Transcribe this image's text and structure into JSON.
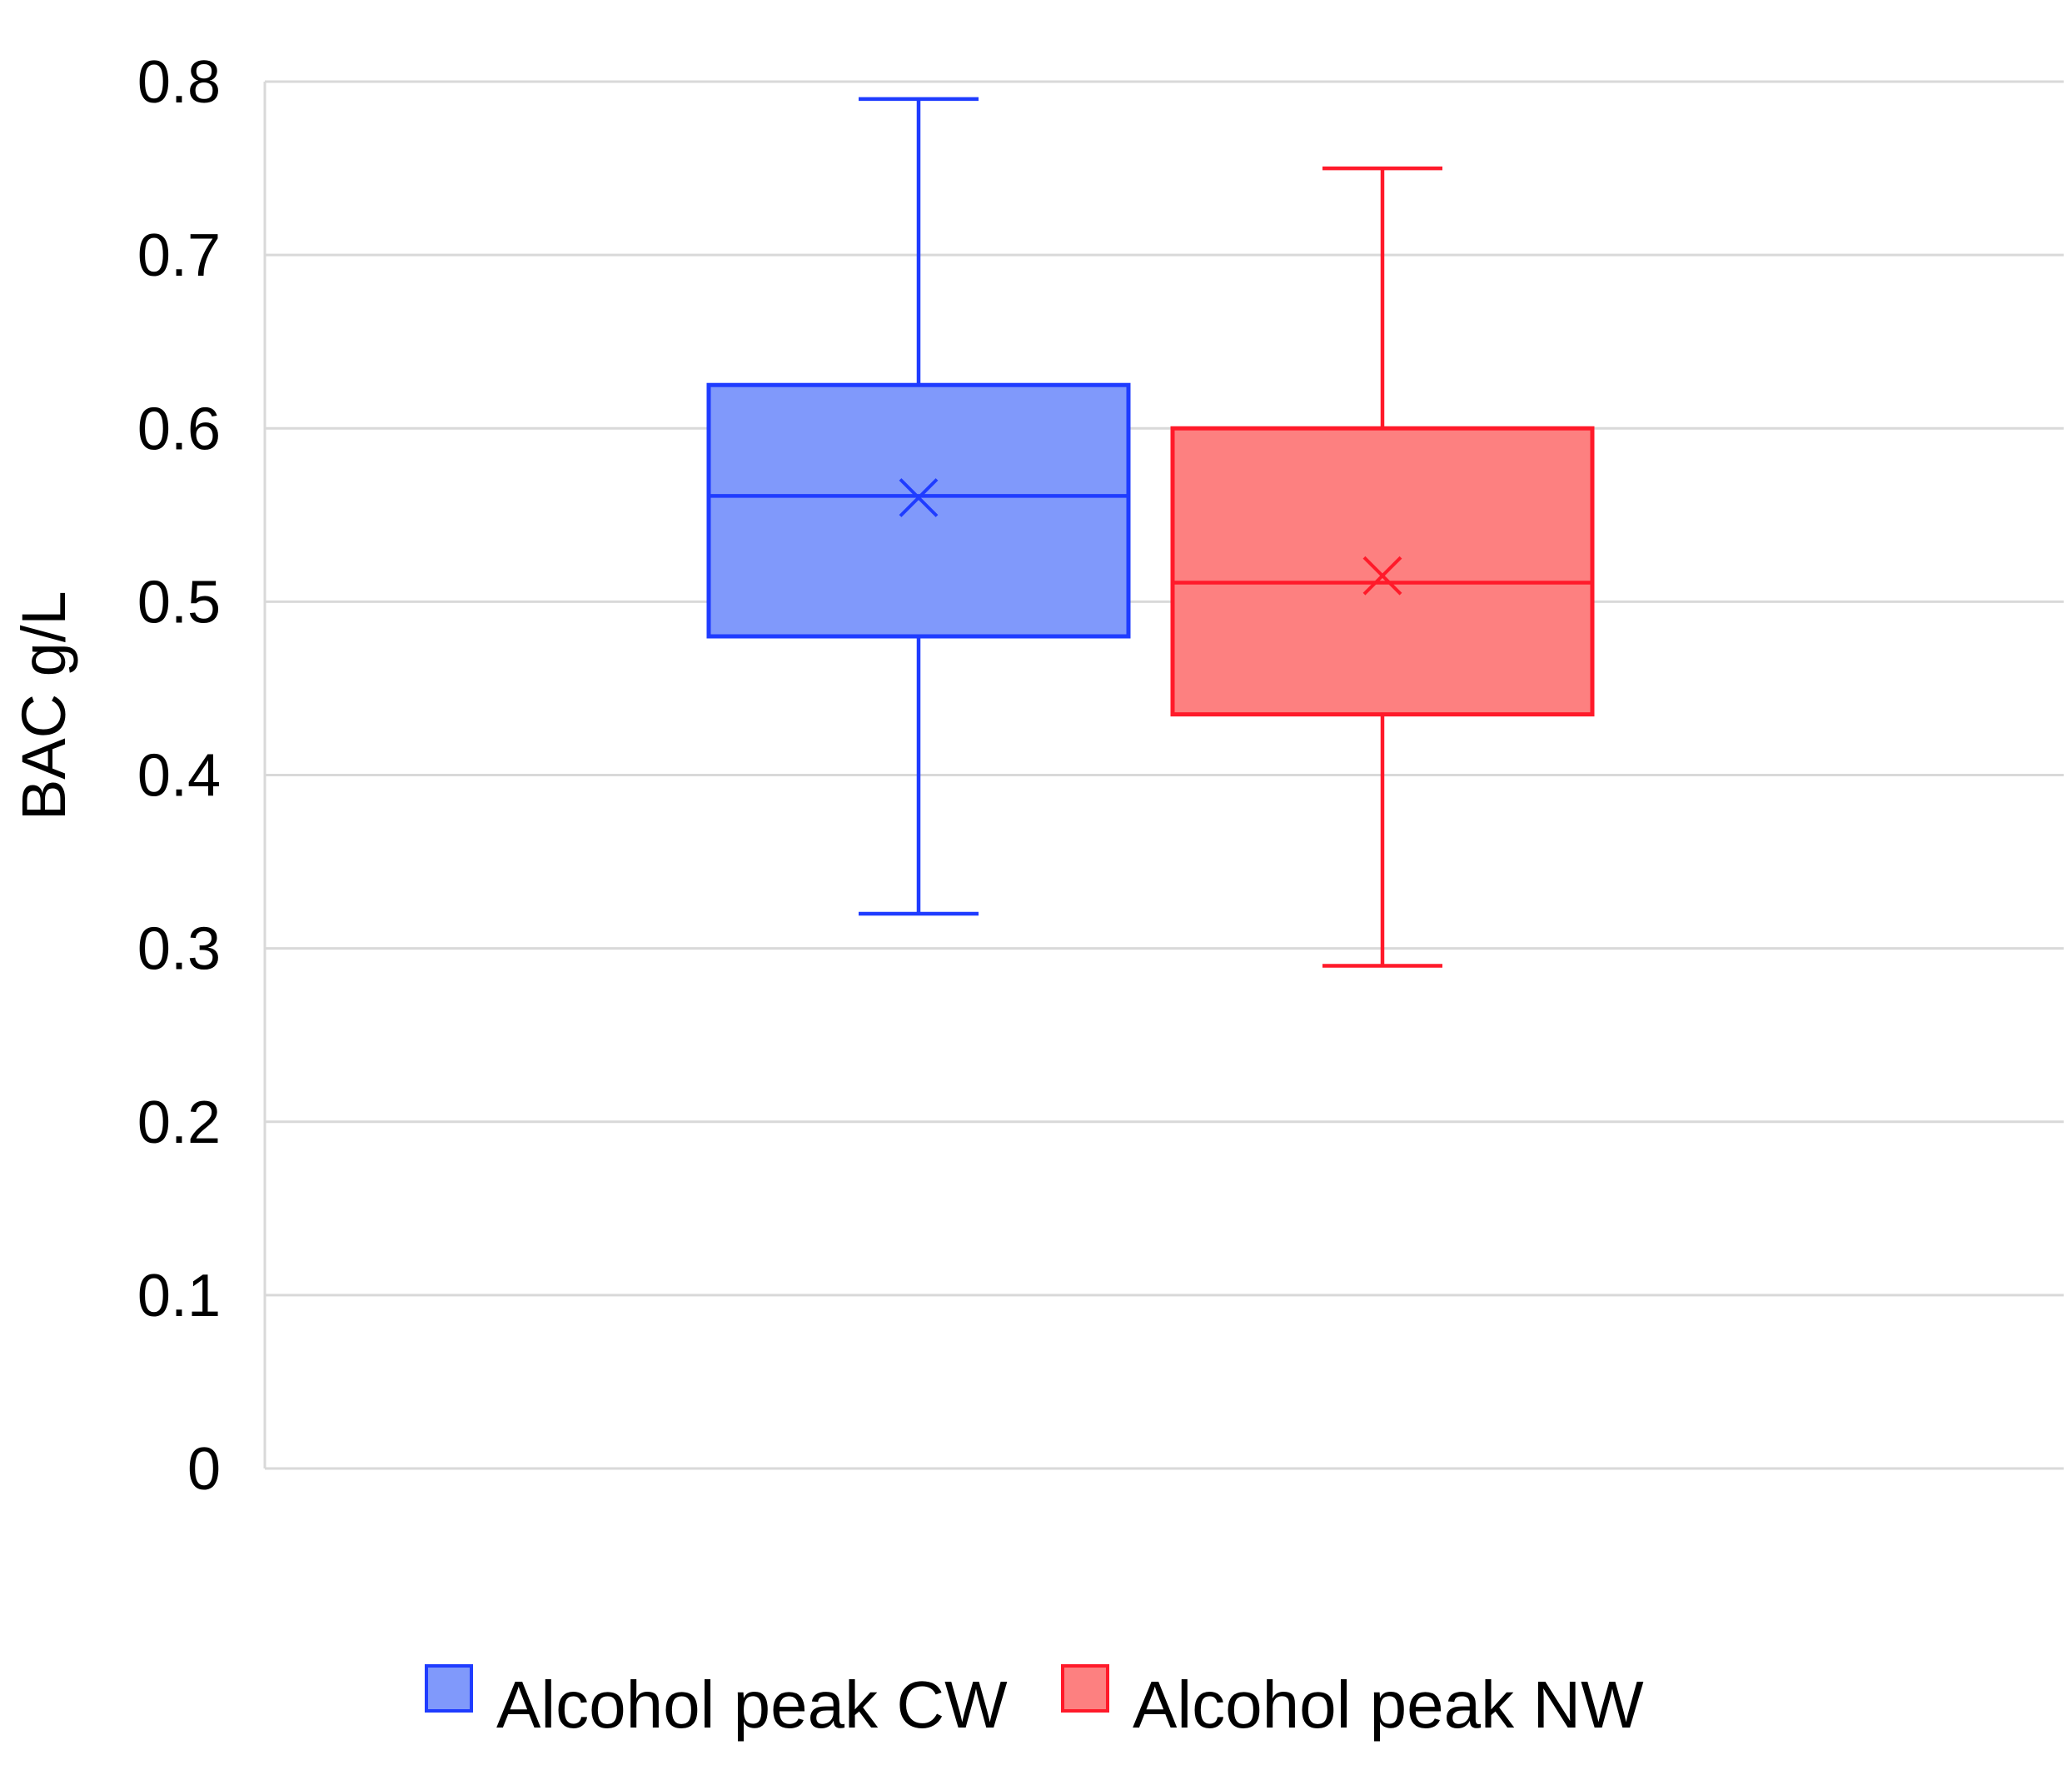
{
  "chart_data": {
    "type": "boxplot",
    "title": "",
    "xlabel": "",
    "ylabel": "BAC g/L",
    "ylim": [
      0,
      0.8
    ],
    "yticks": [
      0,
      0.1,
      0.2,
      0.3,
      0.4,
      0.5,
      0.6,
      0.7,
      0.8
    ],
    "ytick_labels": [
      "0",
      "0.1",
      "0.2",
      "0.3",
      "0.4",
      "0.5",
      "0.6",
      "0.7",
      "0.8"
    ],
    "grid": true,
    "legend_position": "bottom",
    "series": [
      {
        "name": "Alcohol peak CW",
        "color": "#1f3cff",
        "fill": "#8099fb",
        "min": 0.32,
        "q1": 0.48,
        "median": 0.561,
        "q3": 0.625,
        "max": 0.79,
        "mean": 0.56
      },
      {
        "name": "Alcohol peak NW",
        "color": "#ff1a2a",
        "fill": "#fd8080",
        "min": 0.29,
        "q1": 0.435,
        "median": 0.511,
        "q3": 0.6,
        "max": 0.75,
        "mean": 0.515
      }
    ]
  }
}
